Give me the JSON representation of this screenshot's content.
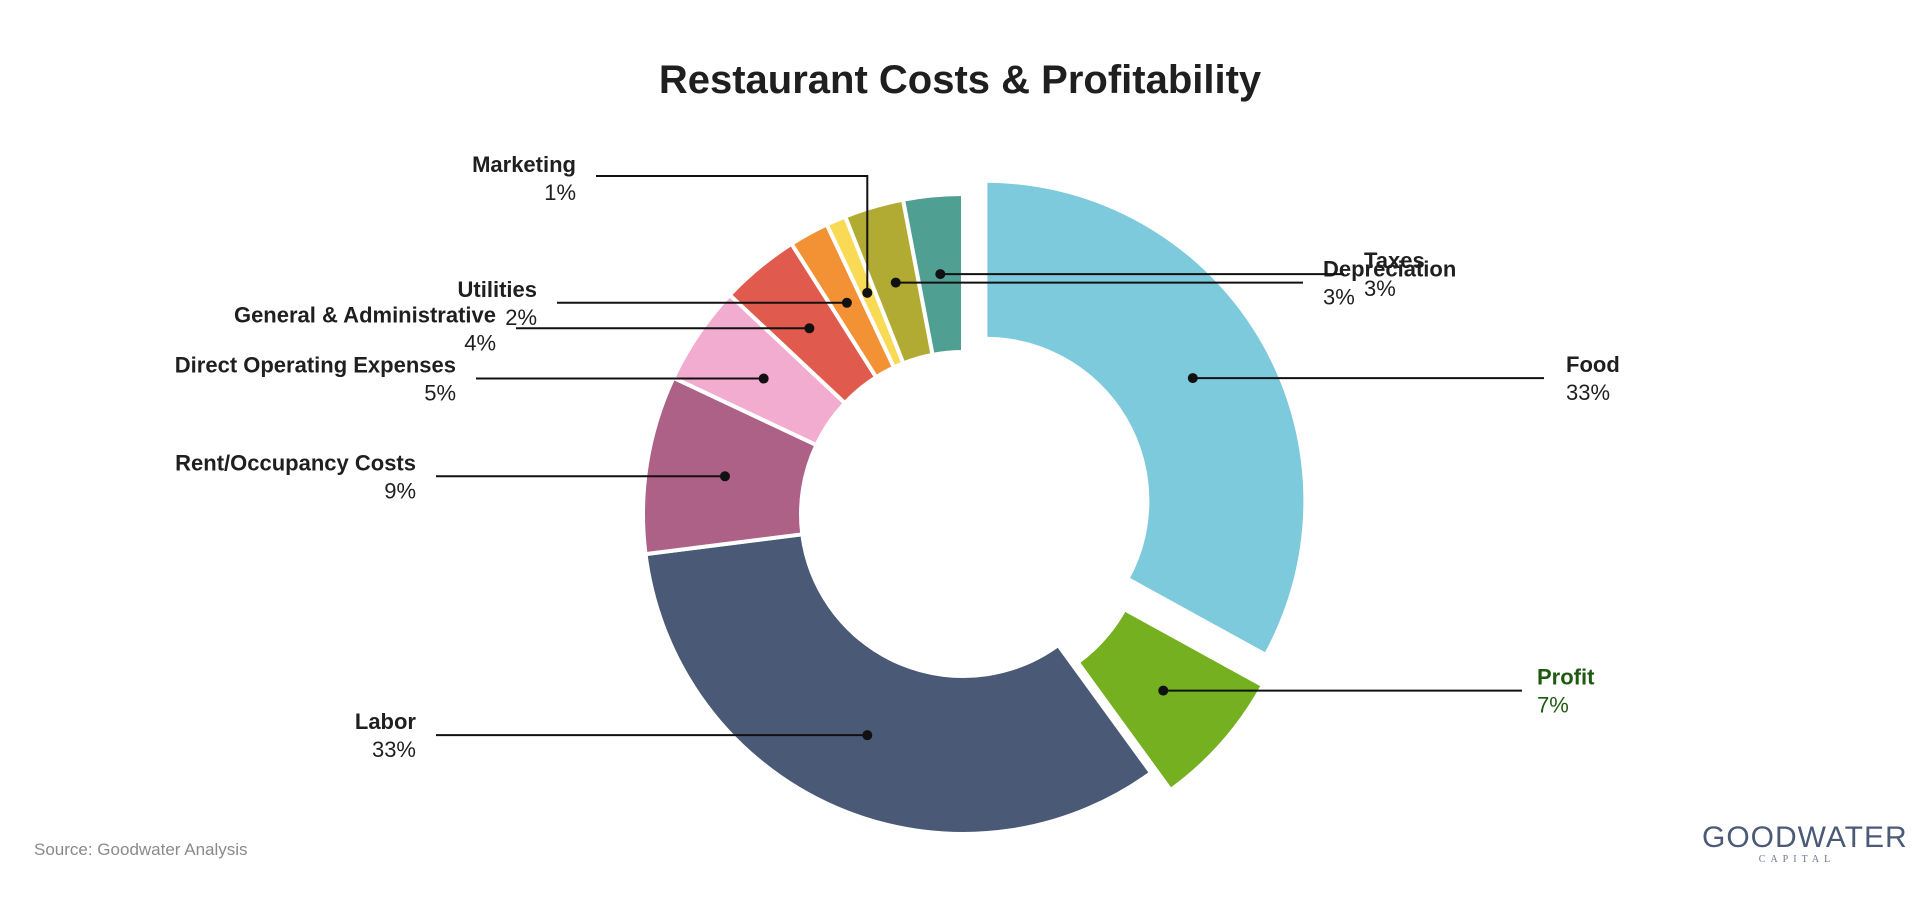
{
  "title": "Restaurant Costs & Profitability",
  "source": "Source: Goodwater Analysis",
  "logo": {
    "main": "GOODWATER",
    "sub": "CAPITAL"
  },
  "chart_data": {
    "type": "pie",
    "subtype": "donut",
    "title": "Restaurant Costs & Profitability",
    "start_angle_deg": 0,
    "direction": "clockwise",
    "slices": [
      {
        "key": "food",
        "label": "Food",
        "value": 33,
        "value_label": "33%",
        "color": "#7ccadc",
        "label_color": "#1f1f1f",
        "exploded": true
      },
      {
        "key": "profit",
        "label": "Profit",
        "value": 7,
        "value_label": "7%",
        "color": "#74b020",
        "label_color": "#1f5a12",
        "exploded": true
      },
      {
        "key": "labor",
        "label": "Labor",
        "value": 33,
        "value_label": "33%",
        "color": "#4a5a76",
        "label_color": "#1f1f1f",
        "exploded": false
      },
      {
        "key": "rent",
        "label": "Rent/Occupancy Costs",
        "value": 9,
        "value_label": "9%",
        "color": "#ae6186",
        "label_color": "#1f1f1f",
        "exploded": false
      },
      {
        "key": "direct_opex",
        "label": "Direct Operating Expenses",
        "value": 5,
        "value_label": "5%",
        "color": "#f2acd0",
        "label_color": "#1f1f1f",
        "exploded": false
      },
      {
        "key": "g_and_a",
        "label": "General & Administrative",
        "value": 4,
        "value_label": "4%",
        "color": "#e15a4e",
        "label_color": "#1f1f1f",
        "exploded": false
      },
      {
        "key": "utilities",
        "label": "Utilities",
        "value": 2,
        "value_label": "2%",
        "color": "#f29235",
        "label_color": "#1f1f1f",
        "exploded": false
      },
      {
        "key": "marketing",
        "label": "Marketing",
        "value": 1,
        "value_label": "1%",
        "color": "#f9da55",
        "label_color": "#1f1f1f",
        "exploded": false
      },
      {
        "key": "depreciation",
        "label": "Depreciation",
        "value": 3,
        "value_label": "3%",
        "color": "#b2ab33",
        "label_color": "#1f1f1f",
        "exploded": false
      },
      {
        "key": "taxes",
        "label": "Taxes",
        "value": 3,
        "value_label": "3%",
        "color": "#509f93",
        "label_color": "#1f1f1f",
        "exploded": false
      }
    ]
  }
}
